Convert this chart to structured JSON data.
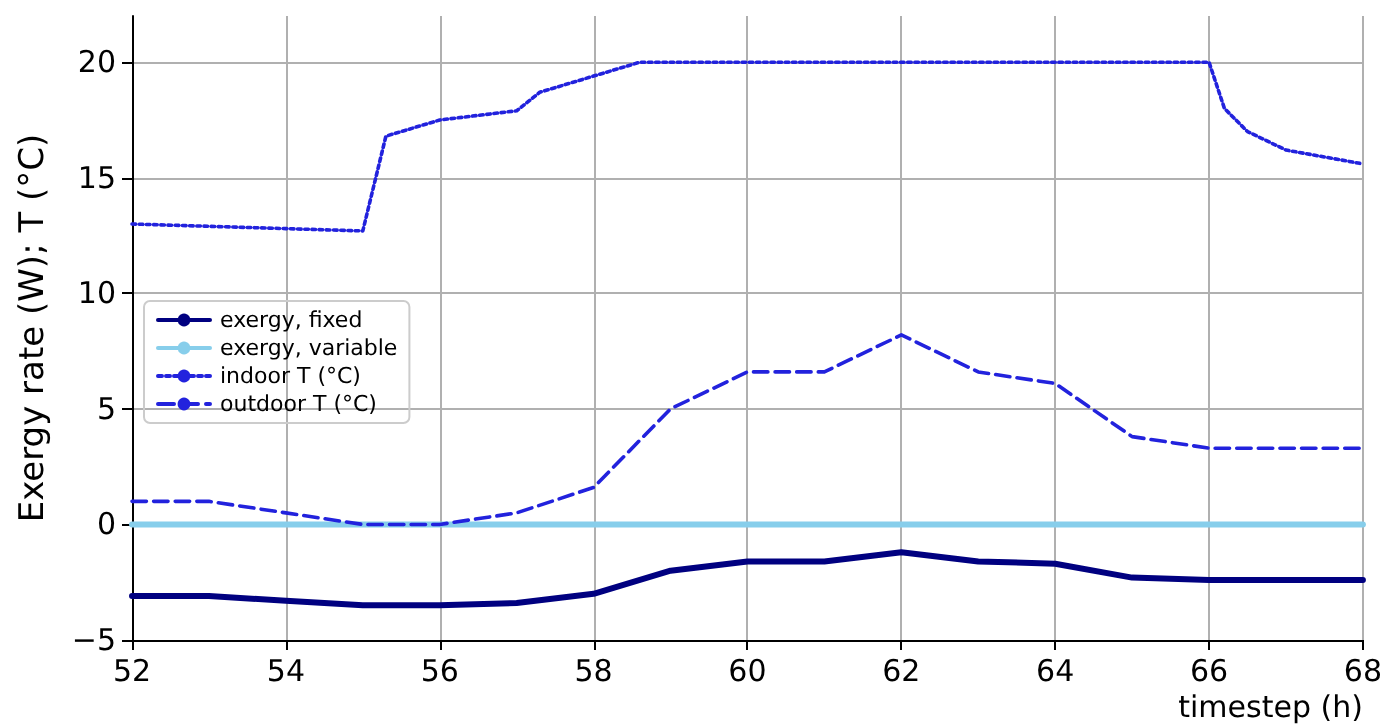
{
  "chart_data": {
    "type": "line",
    "xlabel": "timestep (h)",
    "ylabel": "Exergy rate (W); T (°C)",
    "xlim": [
      52,
      68
    ],
    "xticks": [
      52,
      54,
      56,
      58,
      60,
      62,
      64,
      66,
      68
    ],
    "ylim": [
      -5,
      22
    ],
    "yticks": [
      {
        "value": -5,
        "label": "−5"
      },
      0,
      5,
      10,
      15,
      20
    ],
    "grid": true,
    "legend": "left",
    "marker": "none",
    "series": [
      {
        "name": "exergy, fixed",
        "color": "#000080",
        "line_style": "solid",
        "x": [
          52,
          53,
          54,
          55,
          56,
          57,
          58,
          59,
          60,
          61,
          62,
          63,
          64,
          65,
          66,
          67,
          68
        ],
        "values": [
          -3.1,
          -3.1,
          -3.3,
          -3.5,
          -3.5,
          -3.4,
          -3.0,
          -2.0,
          -1.6,
          -1.6,
          -1.2,
          -1.6,
          -1.7,
          -2.3,
          -2.4,
          -2.4,
          -2.4
        ]
      },
      {
        "name": "exergy, variable",
        "color": "#87ceeb",
        "line_style": "solid",
        "x": [
          52,
          53,
          54,
          55,
          56,
          57,
          58,
          59,
          60,
          61,
          62,
          63,
          64,
          65,
          66,
          67,
          68
        ],
        "values": [
          0,
          0,
          0,
          0,
          0,
          0,
          0,
          0,
          0,
          0,
          0,
          0,
          0,
          0,
          0,
          0,
          0
        ]
      },
      {
        "name": "indoor T (°C)",
        "color": "#2222dd",
        "line_style": "dotted",
        "x": [
          52,
          53,
          54,
          55,
          55.3,
          56,
          57,
          57.3,
          58,
          58.6,
          60,
          62,
          64,
          66,
          66.2,
          66.5,
          67,
          68
        ],
        "values": [
          13.0,
          12.9,
          12.8,
          12.7,
          16.8,
          17.5,
          17.9,
          18.7,
          19.4,
          20,
          20,
          20,
          20,
          20,
          18,
          17,
          16.2,
          15.6
        ]
      },
      {
        "name": "outdoor T (°C)",
        "color": "#2222dd",
        "line_style": "dashed",
        "x": [
          52,
          53,
          54,
          55,
          56,
          57,
          58,
          59,
          60,
          61,
          62,
          63,
          64,
          65,
          66,
          67,
          68
        ],
        "values": [
          1.0,
          1.0,
          0.5,
          0,
          0,
          0.5,
          1.6,
          5.0,
          6.6,
          6.6,
          8.2,
          6.6,
          6.1,
          3.8,
          3.3,
          3.3,
          3.3
        ]
      }
    ]
  }
}
